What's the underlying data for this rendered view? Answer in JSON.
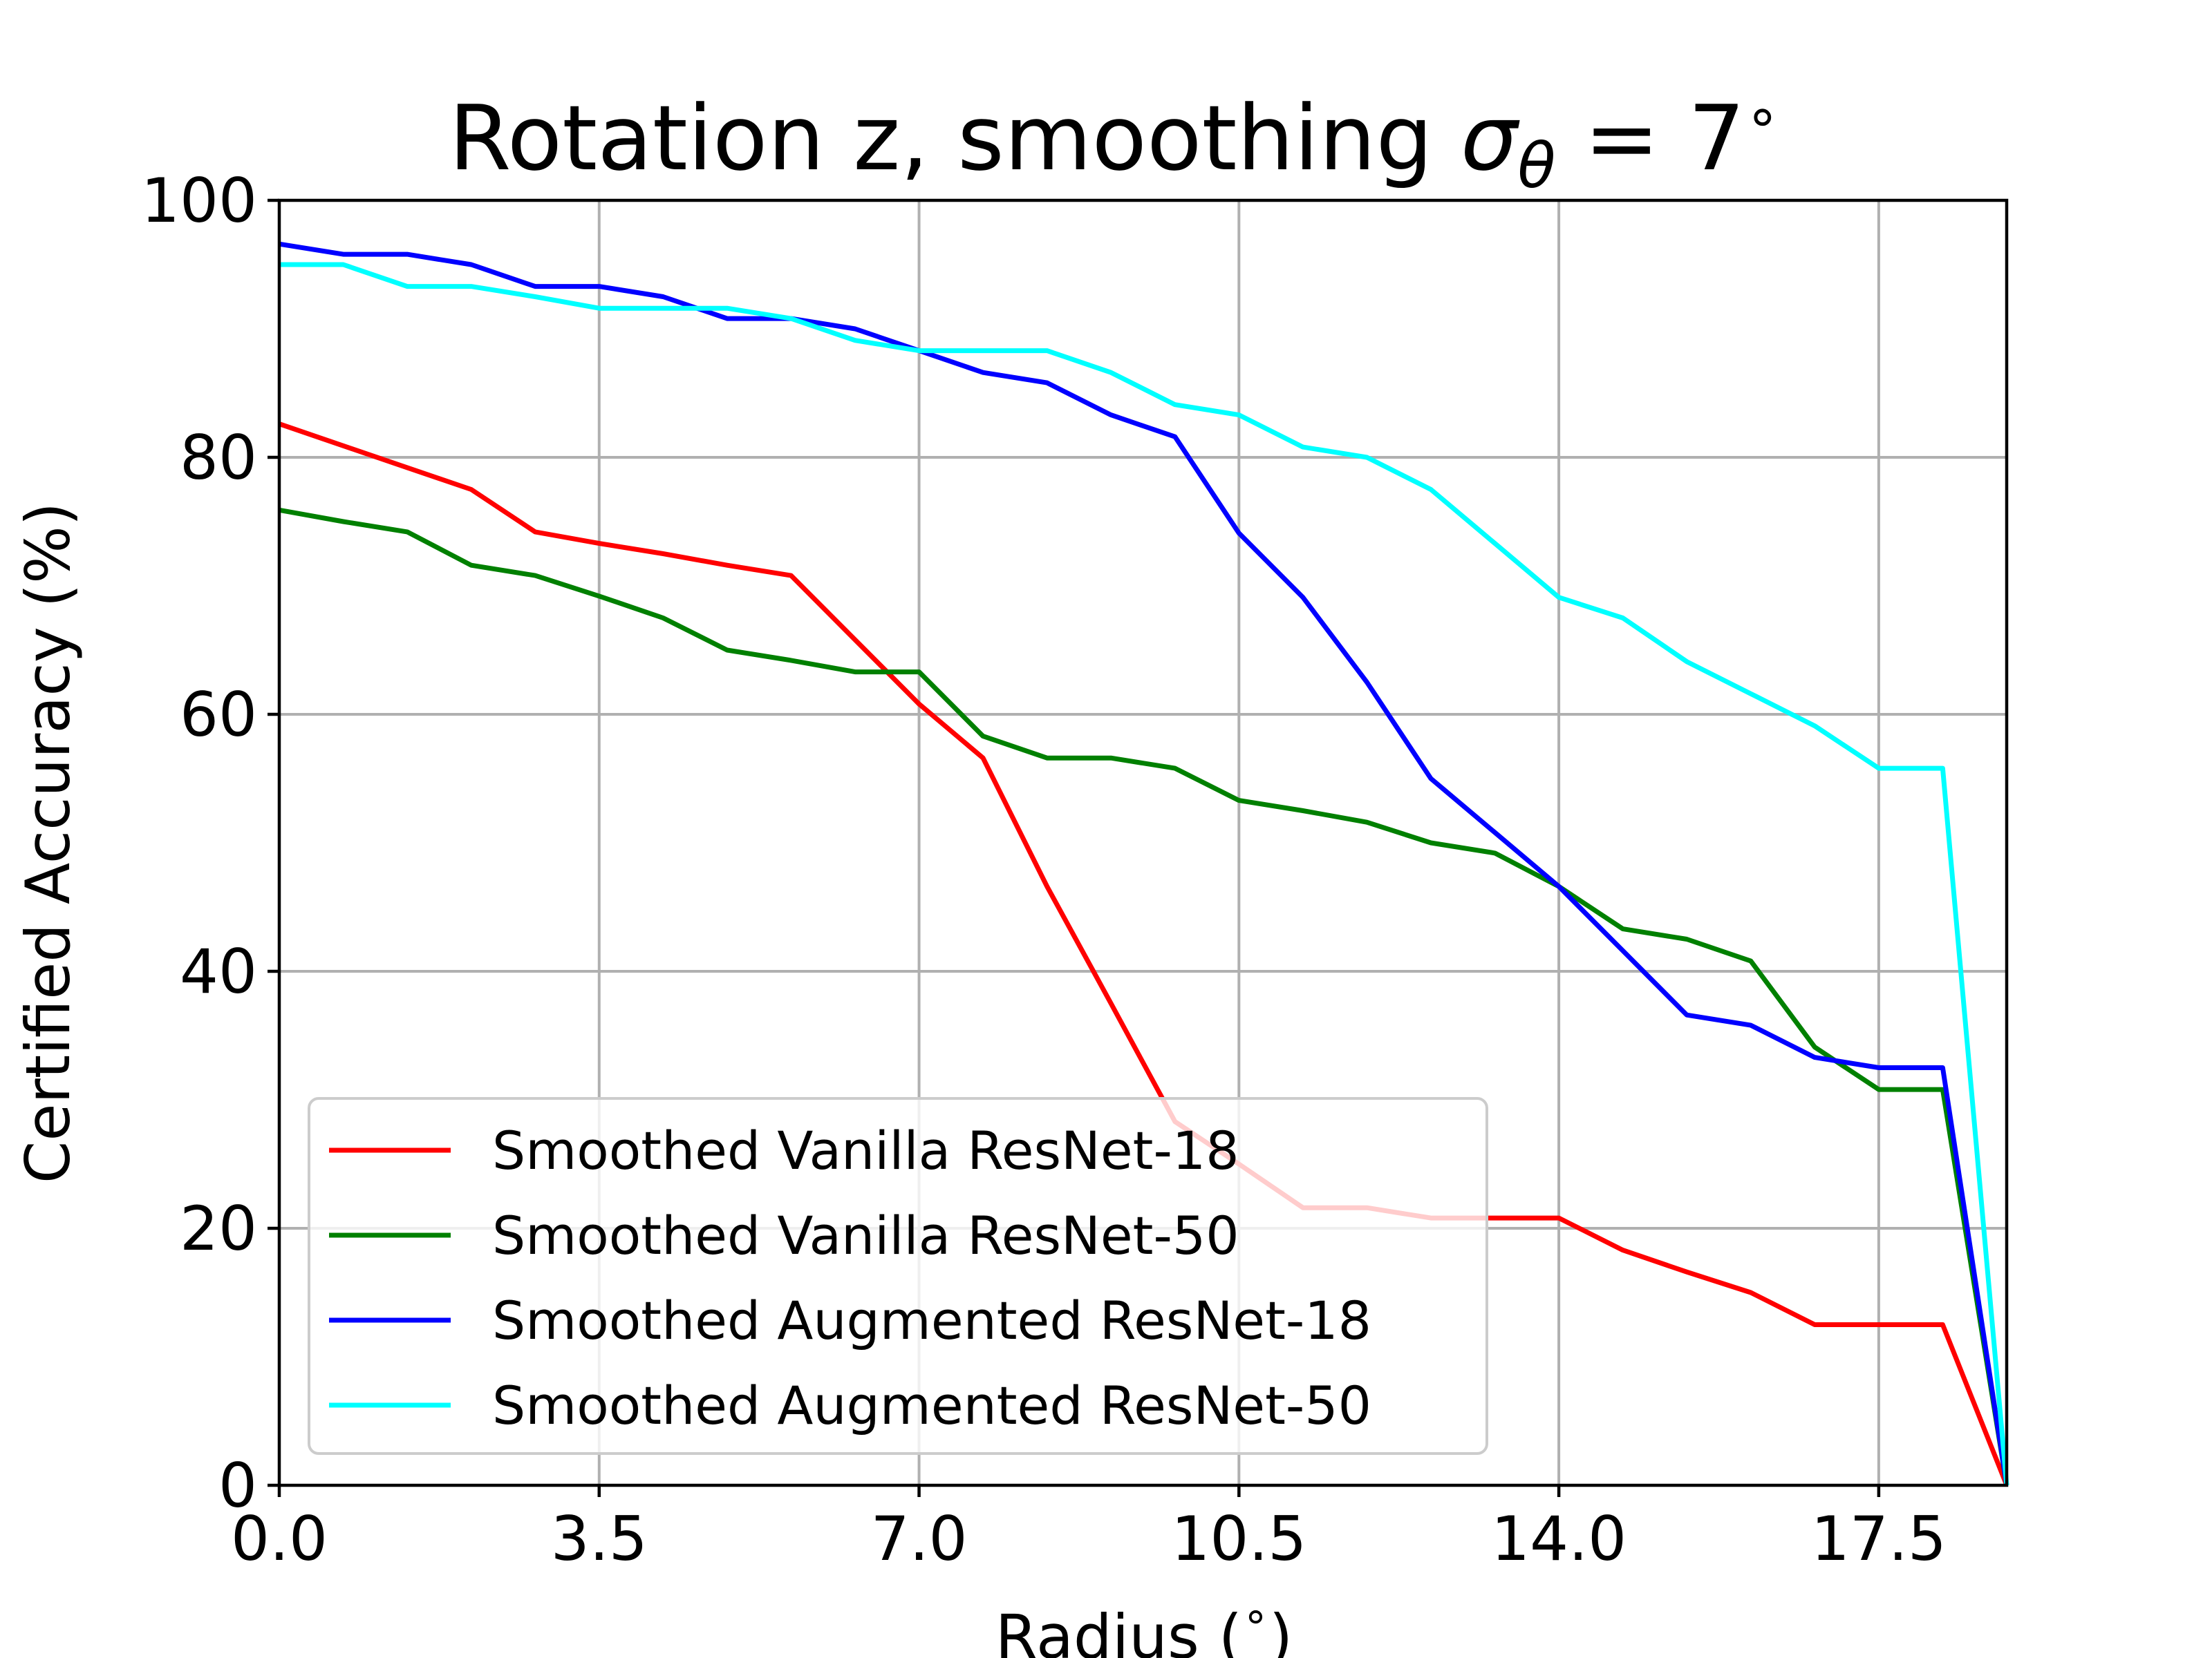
{
  "chart_data": {
    "type": "line",
    "title": "Rotation z, smoothing",
    "title_symbol": "σ",
    "title_subscript": "θ",
    "title_tail": " = 7",
    "title_degree": "∘",
    "xlabel": "Radius (",
    "xlabel_degree": "∘",
    "xlabel_close": ")",
    "ylabel": "Certified Accuracy (%)",
    "xlim": [
      0,
      18.9
    ],
    "ylim": [
      0,
      100
    ],
    "x_ticks": [
      "0.0",
      "3.5",
      "7.0",
      "10.5",
      "14.0",
      "17.5"
    ],
    "y_ticks": [
      "0",
      "20",
      "40",
      "60",
      "80",
      "100"
    ],
    "grid": true,
    "legend_position": "lower-left",
    "x": [
      0.0,
      0.7,
      1.4,
      2.1,
      2.8,
      3.5,
      4.2,
      4.9,
      5.6,
      6.3,
      7.0,
      7.7,
      8.4,
      9.1,
      9.8,
      10.5,
      11.2,
      11.9,
      12.6,
      13.3,
      14.0,
      14.7,
      15.4,
      16.1,
      16.8,
      17.5,
      18.2,
      18.9
    ],
    "series": [
      {
        "name": "Smoothed Vanilla ResNet-18",
        "color": "#ff0000",
        "values": [
          82.6,
          80.9,
          79.2,
          77.5,
          74.2,
          73.3,
          72.5,
          71.6,
          70.8,
          65.8,
          60.8,
          56.6,
          46.6,
          37.5,
          28.3,
          25.0,
          21.6,
          21.6,
          20.8,
          20.8,
          20.8,
          18.3,
          16.6,
          15.0,
          12.5,
          12.5,
          12.5,
          0.0
        ]
      },
      {
        "name": "Smoothed Vanilla ResNet-50",
        "color": "#008000",
        "values": [
          75.9,
          75.0,
          74.2,
          71.6,
          70.8,
          69.2,
          67.5,
          65.0,
          64.2,
          63.3,
          63.3,
          58.3,
          56.6,
          56.6,
          55.8,
          53.3,
          52.5,
          51.6,
          50.0,
          49.2,
          46.6,
          43.3,
          42.5,
          40.8,
          34.1,
          30.8,
          30.8,
          0.0
        ]
      },
      {
        "name": "Smoothed Augmented ResNet-18",
        "color": "#0000ff",
        "values": [
          96.6,
          95.8,
          95.8,
          95.0,
          93.3,
          93.3,
          92.5,
          90.8,
          90.8,
          90.0,
          88.3,
          86.6,
          85.8,
          83.3,
          81.6,
          74.1,
          69.1,
          62.5,
          55.0,
          50.8,
          46.6,
          41.6,
          36.6,
          35.8,
          33.3,
          32.5,
          32.5,
          0.0
        ]
      },
      {
        "name": "Smoothed Augmented ResNet-50",
        "color": "#00ffff",
        "values": [
          95.0,
          95.0,
          93.3,
          93.3,
          92.5,
          91.6,
          91.6,
          91.6,
          90.8,
          89.1,
          88.3,
          88.3,
          88.3,
          86.6,
          84.1,
          83.3,
          80.8,
          80.0,
          77.5,
          73.3,
          69.1,
          67.5,
          64.1,
          61.6,
          59.1,
          55.8,
          55.8,
          0.0
        ]
      }
    ]
  }
}
